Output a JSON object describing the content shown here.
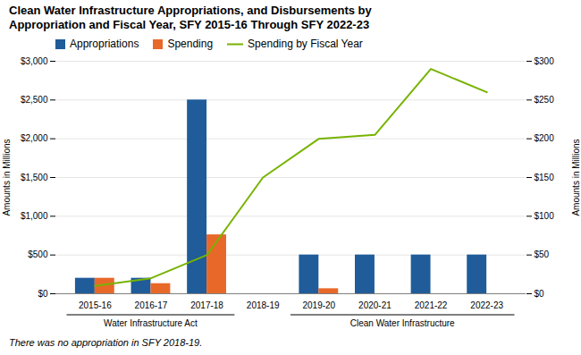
{
  "chart_data": {
    "type": "bar",
    "title": "Clean Water Infrastructure Appropriations, and Disbursements by\nAppropriation and Fiscal Year, SFY 2015-16 Through SFY 2022-23",
    "categories": [
      "2015-16",
      "2016-17",
      "2017-18",
      "2018-19",
      "2019-20",
      "2020-21",
      "2021-22",
      "2022-23"
    ],
    "series": [
      {
        "name": "Appropriations",
        "color": "#1F5C99",
        "values": [
          200,
          200,
          2500,
          0,
          500,
          500,
          500,
          500
        ]
      },
      {
        "name": "Spending",
        "color": "#E8682A",
        "values": [
          200,
          130,
          760,
          0,
          65,
          0,
          0,
          0
        ]
      },
      {
        "name": "Spending by Fiscal Year",
        "type": "line",
        "axis": "y2",
        "color": "#77B300",
        "values": [
          10,
          20,
          50,
          150,
          200,
          205,
          290,
          260
        ]
      }
    ],
    "ylabel": "Amounts in Millions",
    "y2label": "Amounts in Millions",
    "ylim": [
      0,
      3000
    ],
    "yticks": [
      {
        "value": 0,
        "label": "$0"
      },
      {
        "value": 500,
        "label": "$500"
      },
      {
        "value": 1000,
        "label": "$1,000"
      },
      {
        "value": 1500,
        "label": "$1,500"
      },
      {
        "value": 2000,
        "label": "$2,000"
      },
      {
        "value": 2500,
        "label": "$2,500"
      },
      {
        "value": 3000,
        "label": "$3,000"
      }
    ],
    "y2lim": [
      0,
      300
    ],
    "y2ticks": [
      {
        "value": 0,
        "label": "$0"
      },
      {
        "value": 50,
        "label": "$50"
      },
      {
        "value": 100,
        "label": "$100"
      },
      {
        "value": 150,
        "label": "$150"
      },
      {
        "value": 200,
        "label": "$200"
      },
      {
        "value": 250,
        "label": "$250"
      },
      {
        "value": 300,
        "label": "$300"
      }
    ],
    "grid": true,
    "legend": "top",
    "groups": [
      {
        "label": "Water Infrastructure Act",
        "categories": [
          "2015-16",
          "2016-17",
          "2017-18"
        ]
      },
      {
        "label": "Clean Water Infrastructure",
        "categories": [
          "2019-20",
          "2020-21",
          "2021-22",
          "2022-23"
        ]
      }
    ],
    "footnote": "There was no appropriation in SFY 2018-19."
  }
}
